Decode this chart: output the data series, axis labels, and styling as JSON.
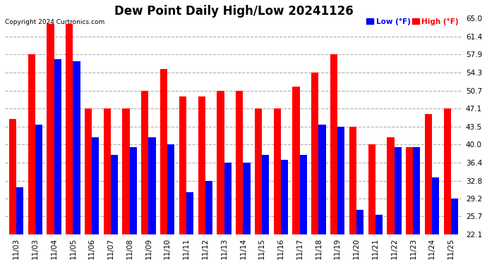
{
  "title": "Dew Point Daily High/Low 20241126",
  "copyright": "Copyright 2024 Curtronics.com",
  "legend_low": "Low (°F)",
  "legend_high": "High (°F)",
  "dates": [
    "11/03",
    "11/03",
    "11/04",
    "11/05",
    "11/06",
    "11/07",
    "11/08",
    "11/09",
    "11/10",
    "11/11",
    "11/12",
    "11/13",
    "11/14",
    "11/15",
    "11/16",
    "11/17",
    "11/18",
    "11/19",
    "11/20",
    "11/21",
    "11/22",
    "11/23",
    "11/24",
    "11/25"
  ],
  "high_values": [
    45.0,
    57.9,
    64.0,
    64.0,
    47.1,
    47.1,
    47.1,
    50.7,
    55.0,
    49.5,
    49.5,
    50.7,
    50.7,
    47.1,
    47.1,
    51.5,
    54.3,
    57.9,
    43.5,
    40.0,
    41.5,
    39.5,
    46.0,
    47.1
  ],
  "low_values": [
    31.5,
    44.0,
    57.0,
    56.5,
    41.5,
    38.0,
    39.5,
    41.5,
    40.0,
    30.5,
    32.8,
    36.4,
    36.4,
    38.0,
    37.0,
    38.0,
    44.0,
    43.5,
    27.0,
    26.0,
    39.5,
    39.5,
    33.5,
    29.2
  ],
  "ylim_min": 22.1,
  "ylim_max": 65.0,
  "yticks": [
    22.1,
    25.7,
    29.2,
    32.8,
    36.4,
    40.0,
    43.5,
    47.1,
    50.7,
    54.3,
    57.9,
    61.4,
    65.0
  ],
  "bar_width": 0.38,
  "high_color": "#ff0000",
  "low_color": "#0000ff",
  "bg_color": "#ffffff",
  "grid_color": "#b0b0b0",
  "title_fontsize": 12,
  "tick_fontsize": 7.5,
  "figwidth": 6.9,
  "figheight": 3.75,
  "dpi": 100
}
